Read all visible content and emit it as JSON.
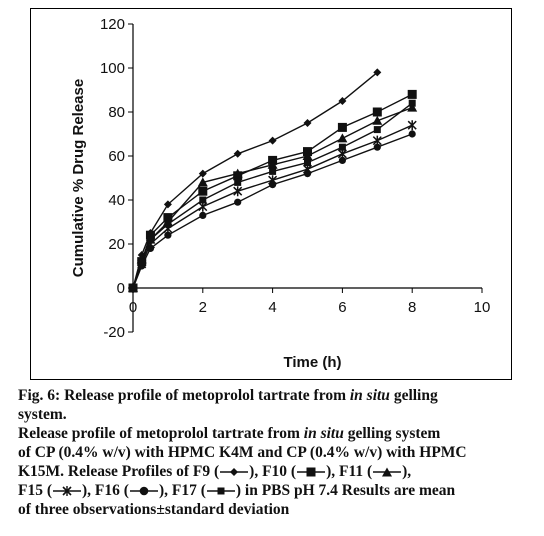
{
  "chart_data": {
    "type": "line",
    "title": "",
    "xlabel": "Time (h)",
    "ylabel": "Cumulative % Drug Release",
    "xlim": [
      0,
      10
    ],
    "ylim": [
      -20,
      120
    ],
    "xticks": [
      0,
      2,
      4,
      6,
      8,
      10
    ],
    "yticks": [
      -20,
      0,
      20,
      40,
      60,
      80,
      100,
      120
    ],
    "grid": false,
    "legend": "none",
    "series": [
      {
        "name": "F9",
        "marker": "diamond",
        "x": [
          0,
          0.25,
          0.5,
          1,
          2,
          3,
          4,
          5,
          6,
          7
        ],
        "y": [
          0,
          15,
          25,
          38,
          52,
          61,
          67,
          75,
          85,
          98
        ]
      },
      {
        "name": "F10",
        "marker": "square",
        "x": [
          0,
          0.25,
          0.5,
          1,
          2,
          3,
          4,
          5,
          6,
          7,
          8
        ],
        "y": [
          0,
          12,
          24,
          32,
          44,
          51,
          58,
          62,
          73,
          80,
          88
        ]
      },
      {
        "name": "F11",
        "marker": "triangle",
        "x": [
          0,
          0.25,
          0.5,
          1,
          2,
          3,
          4,
          5,
          6,
          7,
          8
        ],
        "y": [
          0,
          13,
          22,
          30,
          48,
          52,
          56,
          60,
          68,
          76,
          82
        ]
      },
      {
        "name": "F15",
        "marker": "x",
        "x": [
          0,
          0.25,
          0.5,
          1,
          2,
          3,
          4,
          5,
          6,
          7,
          8
        ],
        "y": [
          0,
          11,
          20,
          27,
          37,
          44,
          49,
          54,
          61,
          67,
          74
        ]
      },
      {
        "name": "F16",
        "marker": "circle",
        "x": [
          0,
          0.25,
          0.5,
          1,
          2,
          3,
          4,
          5,
          6,
          7,
          8
        ],
        "y": [
          0,
          10,
          18,
          24,
          33,
          39,
          47,
          52,
          58,
          64,
          70
        ]
      },
      {
        "name": "F17",
        "marker": "square",
        "x": [
          0,
          0.25,
          0.5,
          1,
          2,
          3,
          4,
          5,
          6,
          7,
          8
        ],
        "y": [
          0,
          12,
          22,
          29,
          40,
          48,
          53,
          57,
          64,
          72,
          84
        ]
      }
    ]
  },
  "caption": {
    "fig_label": "Fig. 6:",
    "title_pre": "Release profile of metoprolol tartrate from",
    "title_italic": "in situ",
    "title_post": "gelling",
    "title_line2": "system.",
    "body_line1_pre": "Release profile of metoprolol tartrate from",
    "body_line1_italic": "in situ",
    "body_line1_post": "gelling system",
    "body_line2": "of CP (0.4% w/v) with HPMC K4M and CP (0.4% w/v) with HPMC",
    "body_line3_pre": "K15M. Release Profiles of F9 (",
    "body_line3_mid1": "), F10 (",
    "body_line3_mid2": "), F11 (",
    "body_line3_post": "),",
    "body_line4_pre": "F15 (",
    "body_line4_mid1": "), F16 (",
    "body_line4_mid2": "), F17 (",
    "body_line4_post": ") in PBS pH 7.4 Results are mean",
    "body_line5": "of three observations±standard deviation"
  }
}
